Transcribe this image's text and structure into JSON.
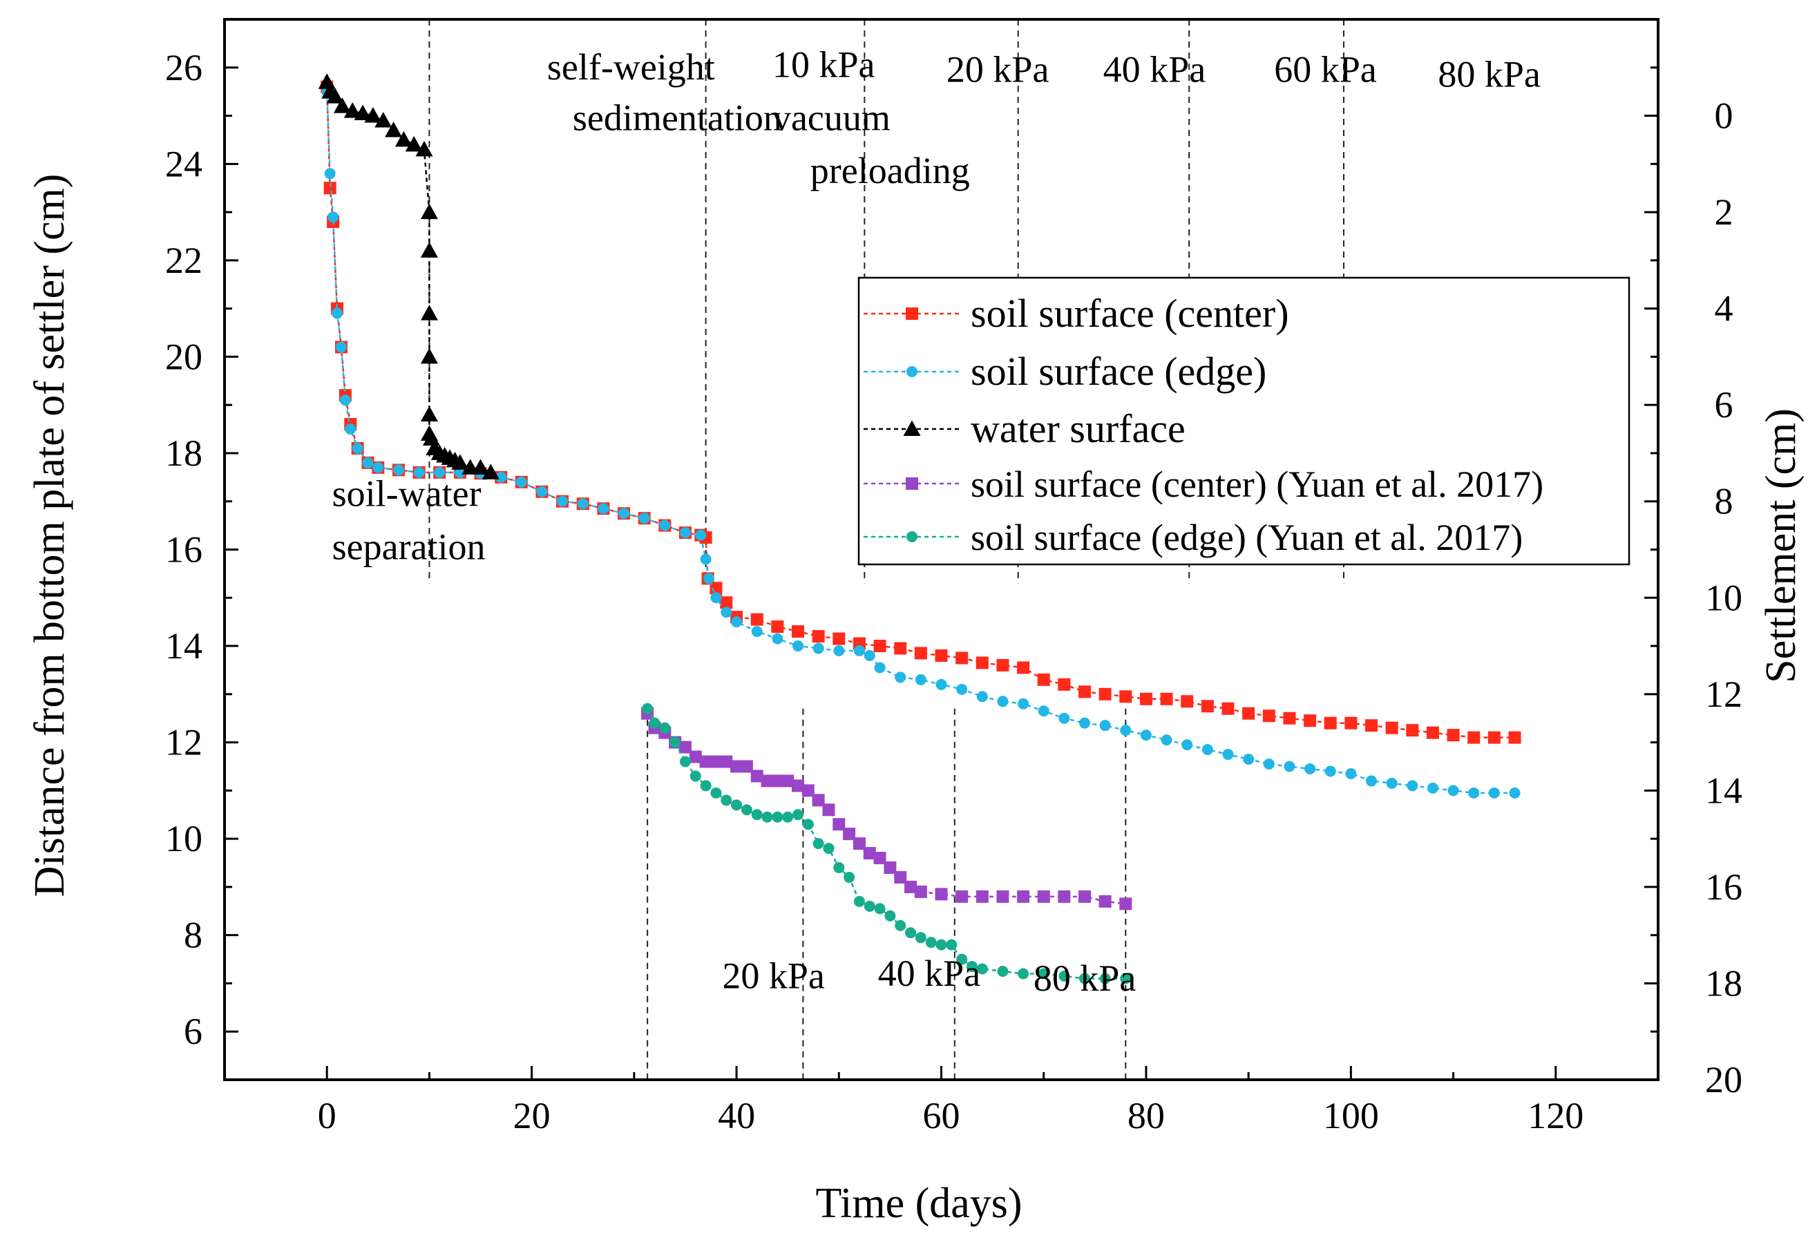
{
  "chart_data": {
    "type": "scatter",
    "xlabel": "Time (days)",
    "ylabel": "Distance from bottom plate of settler (cm)",
    "y2label": "Settlement (cm)",
    "xlim": [
      -10,
      130
    ],
    "ylim": [
      5,
      27
    ],
    "y2lim": [
      20,
      -2
    ],
    "x_ticks": [
      0,
      20,
      40,
      60,
      80,
      100,
      120
    ],
    "y_ticks": [
      6,
      8,
      10,
      12,
      14,
      16,
      18,
      20,
      22,
      24,
      26
    ],
    "y2_ticks": [
      0,
      2,
      4,
      6,
      8,
      10,
      12,
      14,
      16,
      18,
      20
    ],
    "grid": false,
    "legend_position": "center-right",
    "stage_lines_top": [
      10,
      37,
      52.5,
      67.5,
      84.2,
      99.3
    ],
    "stage_lines_bottom": [
      31.3,
      46.5,
      61.3,
      78
    ],
    "annotations": [
      {
        "text": "self-weight",
        "x": 21.5,
        "y": 25.75
      },
      {
        "text": "sedimentation",
        "x": 24,
        "y": 24.7
      },
      {
        "text": "10 kPa",
        "x": 43.5,
        "y": 25.8
      },
      {
        "text": "vacuum",
        "x": 43.5,
        "y": 24.7
      },
      {
        "text": "preloading",
        "x": 47.2,
        "y": 23.6
      },
      {
        "text": "20 kPa",
        "x": 60.5,
        "y": 25.7
      },
      {
        "text": "40 kPa",
        "x": 75.8,
        "y": 25.7
      },
      {
        "text": "60 kPa",
        "x": 92.5,
        "y": 25.7
      },
      {
        "text": "80 kPa",
        "x": 108.5,
        "y": 25.6
      },
      {
        "text": "soil-water",
        "x": 0.5,
        "y": 16.9
      },
      {
        "text": "separation",
        "x": 0.5,
        "y": 15.8
      },
      {
        "text": "20 kPa",
        "x": 38.6,
        "y": 6.9
      },
      {
        "text": "40 kPa",
        "x": 53.8,
        "y": 6.95
      },
      {
        "text": "80 kPa",
        "x": 69,
        "y": 6.85
      }
    ],
    "series": [
      {
        "name": "soil surface (center)",
        "color": "#ff2a1a",
        "marker": "square",
        "x": [
          0,
          0.3,
          0.6,
          1,
          1.4,
          1.8,
          2.3,
          3,
          4,
          5,
          7,
          9,
          11,
          13,
          15,
          17,
          19,
          21,
          23,
          25,
          27,
          29,
          31,
          33,
          35,
          36.5,
          37,
          37.2,
          38,
          39,
          40,
          42,
          44,
          46,
          48,
          50,
          52,
          54,
          56,
          58,
          60,
          62,
          64,
          66,
          68,
          70,
          72,
          74,
          76,
          78,
          80,
          82,
          84,
          86,
          88,
          90,
          92,
          94,
          96,
          98,
          100,
          102,
          104,
          106,
          108,
          110,
          112,
          114,
          116
        ],
        "y": [
          25.6,
          23.5,
          22.8,
          21,
          20.2,
          19.2,
          18.6,
          18.1,
          17.8,
          17.7,
          17.65,
          17.6,
          17.6,
          17.6,
          17.58,
          17.5,
          17.4,
          17.2,
          17,
          16.95,
          16.85,
          16.75,
          16.65,
          16.5,
          16.35,
          16.3,
          16.25,
          15.4,
          15.2,
          14.9,
          14.6,
          14.55,
          14.4,
          14.3,
          14.2,
          14.15,
          14.05,
          14,
          13.95,
          13.85,
          13.8,
          13.75,
          13.65,
          13.6,
          13.55,
          13.3,
          13.2,
          13.05,
          13,
          12.95,
          12.9,
          12.9,
          12.85,
          12.75,
          12.7,
          12.6,
          12.55,
          12.5,
          12.45,
          12.4,
          12.4,
          12.35,
          12.3,
          12.25,
          12.2,
          12.15,
          12.1,
          12.1,
          12.1
        ]
      },
      {
        "name": "soil surface (edge)",
        "color": "#22b6e6",
        "marker": "circle",
        "x": [
          0,
          0.3,
          0.6,
          1,
          1.4,
          1.8,
          2.3,
          3,
          4,
          5,
          7,
          9,
          11,
          13,
          15,
          17,
          19,
          21,
          23,
          25,
          27,
          29,
          31,
          33,
          35,
          36.5,
          37,
          37.3,
          38,
          39,
          40,
          42,
          44,
          46,
          48,
          50,
          52,
          53,
          54,
          56,
          58,
          60,
          62,
          64,
          66,
          68,
          70,
          72,
          74,
          76,
          78,
          80,
          82,
          84,
          86,
          88,
          90,
          92,
          94,
          96,
          98,
          100,
          102,
          104,
          106,
          108,
          110,
          112,
          114,
          116
        ],
        "y": [
          25.5,
          23.8,
          22.9,
          20.9,
          20.2,
          19.1,
          18.5,
          18.1,
          17.8,
          17.7,
          17.65,
          17.6,
          17.6,
          17.6,
          17.58,
          17.5,
          17.4,
          17.2,
          17,
          16.95,
          16.85,
          16.75,
          16.65,
          16.5,
          16.35,
          16.3,
          15.8,
          15.4,
          15.0,
          14.7,
          14.5,
          14.3,
          14.15,
          14,
          13.95,
          13.9,
          13.9,
          13.8,
          13.55,
          13.35,
          13.3,
          13.2,
          13.1,
          12.95,
          12.85,
          12.8,
          12.65,
          12.5,
          12.4,
          12.35,
          12.25,
          12.15,
          12.05,
          11.95,
          11.85,
          11.75,
          11.65,
          11.55,
          11.5,
          11.45,
          11.4,
          11.35,
          11.2,
          11.15,
          11.1,
          11.05,
          11,
          10.95,
          10.95,
          10.95
        ]
      },
      {
        "name": "water surface",
        "color": "#000000",
        "marker": "triangle",
        "x": [
          0,
          0.3,
          0.8,
          1.5,
          2.5,
          3.5,
          4.5,
          5.5,
          6.5,
          7.5,
          8.5,
          9.5,
          10,
          10,
          10,
          10,
          10,
          10,
          10.2,
          10.5,
          11,
          11.5,
          12,
          12.5,
          13,
          14,
          15,
          16
        ],
        "y": [
          25.7,
          25.5,
          25.4,
          25.2,
          25.1,
          25.05,
          25,
          24.9,
          24.7,
          24.5,
          24.4,
          24.3,
          23,
          22.2,
          20.9,
          20,
          18.8,
          18.4,
          18.3,
          18.1,
          18,
          17.95,
          17.9,
          17.85,
          17.8,
          17.7,
          17.7,
          17.6
        ]
      },
      {
        "name": "soil surface (center) (Yuan et al. 2017)",
        "color": "#9a45c8",
        "marker": "square",
        "x": [
          31.3,
          32,
          33,
          34,
          35,
          36,
          37,
          38,
          39,
          40,
          41,
          42,
          43,
          44,
          45,
          46,
          47,
          48,
          49,
          50,
          51,
          52,
          53,
          54,
          55,
          56,
          57,
          58,
          60,
          62,
          64,
          66,
          68,
          70,
          72,
          74,
          76,
          78
        ],
        "y": [
          12.6,
          12.3,
          12.2,
          12,
          11.9,
          11.7,
          11.6,
          11.6,
          11.6,
          11.5,
          11.5,
          11.3,
          11.2,
          11.2,
          11.2,
          11.1,
          11,
          10.8,
          10.6,
          10.3,
          10.1,
          9.9,
          9.7,
          9.6,
          9.4,
          9.2,
          9,
          8.9,
          8.85,
          8.8,
          8.8,
          8.8,
          8.8,
          8.8,
          8.8,
          8.8,
          8.7,
          8.65
        ]
      },
      {
        "name": "soil surface (edge) (Yuan et al. 2017)",
        "color": "#16ad8d",
        "marker": "circle",
        "x": [
          31.3,
          32,
          33,
          34,
          35,
          36,
          37,
          38,
          39,
          40,
          41,
          42,
          43,
          44,
          45,
          46,
          47,
          48,
          49,
          50,
          51,
          52,
          53,
          54,
          55,
          56,
          57,
          58,
          59,
          60,
          61,
          62,
          63,
          64,
          66,
          68,
          70,
          72,
          74,
          76,
          78
        ],
        "y": [
          12.7,
          12.4,
          12.3,
          12,
          11.6,
          11.3,
          11.1,
          10.95,
          10.8,
          10.7,
          10.6,
          10.5,
          10.45,
          10.45,
          10.45,
          10.5,
          10.3,
          9.9,
          9.8,
          9.4,
          9.2,
          8.7,
          8.6,
          8.55,
          8.4,
          8.2,
          8.05,
          7.95,
          7.85,
          7.8,
          7.8,
          7.5,
          7.35,
          7.3,
          7.25,
          7.2,
          7.2,
          7.15,
          7.1,
          7.1,
          7.1
        ]
      }
    ]
  }
}
